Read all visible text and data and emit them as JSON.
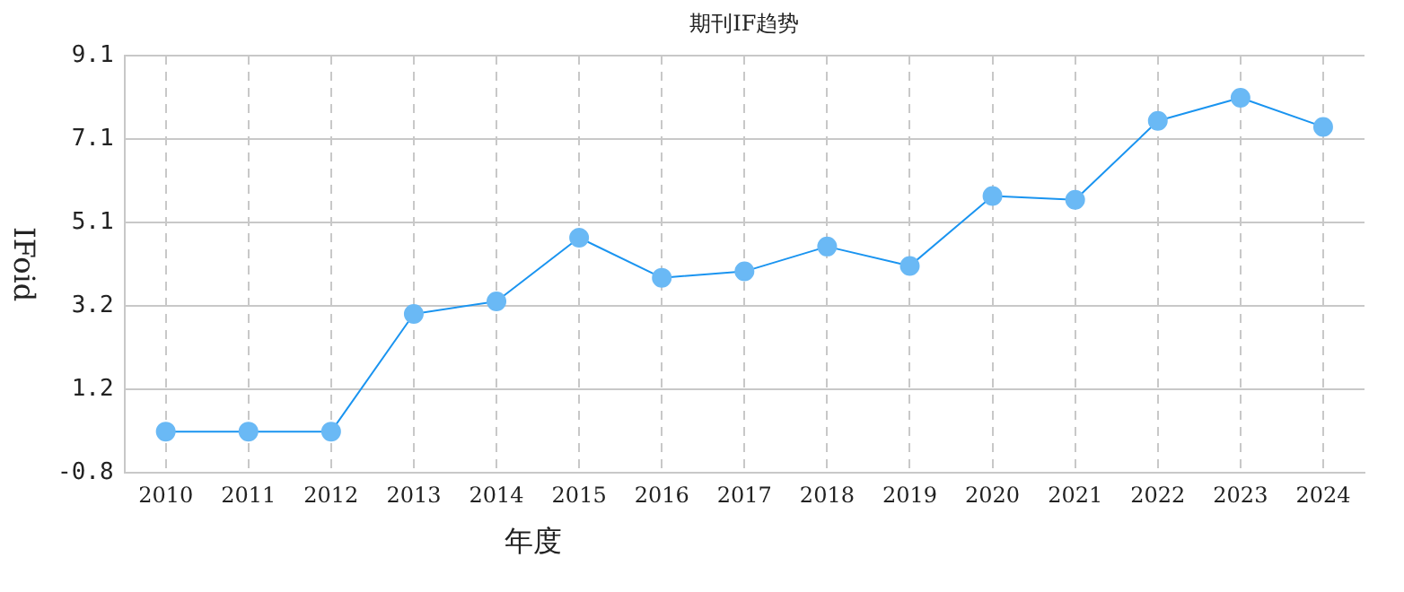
{
  "chart_data": {
    "type": "line",
    "title": "期刊IF趋势",
    "xlabel": "年度",
    "ylabel": "IFoid",
    "categories": [
      "2010",
      "2011",
      "2012",
      "2013",
      "2014",
      "2015",
      "2016",
      "2017",
      "2018",
      "2019",
      "2020",
      "2021",
      "2022",
      "2023",
      "2024"
    ],
    "series": [
      {
        "color": "#1a94f0",
        "values": [
          0.18,
          0.18,
          0.18,
          2.97,
          3.27,
          4.78,
          3.83,
          3.98,
          4.57,
          4.11,
          5.77,
          5.68,
          7.55,
          8.1,
          7.41
        ]
      }
    ],
    "ylim": [
      -0.8,
      9.1
    ],
    "yticks": [
      -0.8,
      {
        "value": 1.18,
        "label": "1.2"
      },
      {
        "value": 3.16,
        "label": "3.2"
      },
      {
        "value": 5.14,
        "label": "5.1"
      },
      {
        "value": 7.12,
        "label": "7.1"
      },
      9.1
    ],
    "grid": true,
    "marker": "circle",
    "line_style": "solid",
    "legend": false
  }
}
